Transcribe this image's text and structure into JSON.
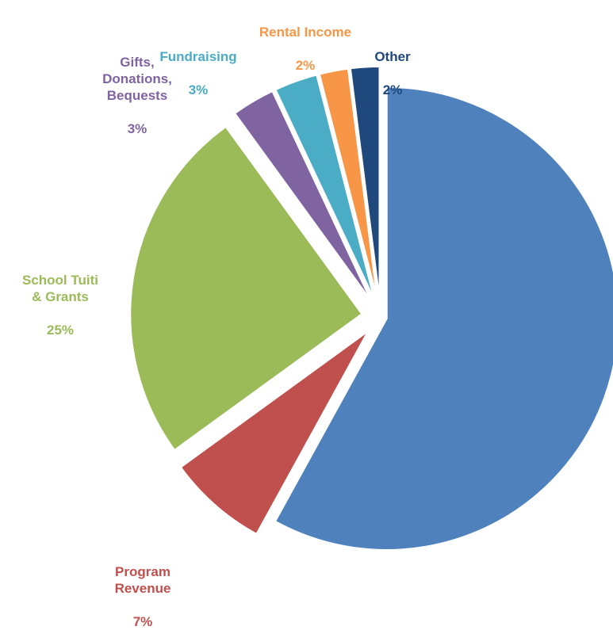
{
  "chart_data": {
    "type": "pie",
    "title": "",
    "slices": [
      {
        "label": "Program Revenue",
        "display": "Program\nRevenue",
        "value": 7,
        "value_label": "7%",
        "color": "#C0504D"
      },
      {
        "label": "School Tuition & Grants",
        "display": "School Tuiti\n& Grants",
        "value": 25,
        "value_label": "25%",
        "color": "#9BBB59"
      },
      {
        "label": "Gifts, Donations, Bequests",
        "display": "Gifts,\nDonations,\nBequests",
        "value": 3,
        "value_label": "3%",
        "color": "#8064A2"
      },
      {
        "label": "Fundraising",
        "display": "Fundraising",
        "value": 3,
        "value_label": "3%",
        "color": "#4BACC6"
      },
      {
        "label": "Rental Income",
        "display": "Rental Income",
        "value": 2,
        "value_label": "2%",
        "color": "#F79646"
      },
      {
        "label": "Other",
        "display": "Other",
        "value": 2,
        "value_label": "2%",
        "color": "#1F497D"
      },
      {
        "label": "",
        "display": "",
        "value": 58,
        "value_label": "",
        "color": "#4F81BD"
      }
    ],
    "legend": "none"
  }
}
